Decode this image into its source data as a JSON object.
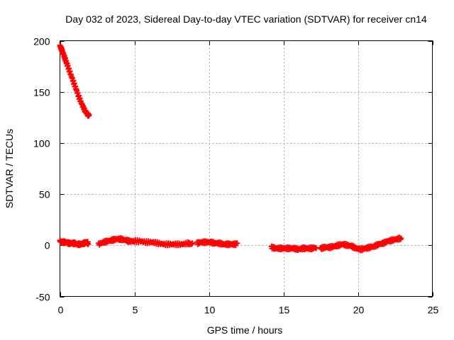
{
  "chart_data": {
    "type": "scatter",
    "title": "Day 032 of 2023, Sidereal Day-to-day VTEC variation (SDTVAR) for receiver cn14",
    "xlabel": "GPS time / hours",
    "ylabel": "SDTVAR / TECUs",
    "xlim": [
      0,
      25
    ],
    "ylim": [
      -50,
      200
    ],
    "x_ticks": [
      0,
      5,
      10,
      15,
      20,
      25
    ],
    "y_ticks": [
      -50,
      0,
      50,
      100,
      150,
      200
    ],
    "grid": true,
    "marker": "+",
    "series": [
      {
        "name": "SDTVAR",
        "color": "#ff0000",
        "segments": [
          {
            "x": [
              0.0,
              0.1,
              0.2,
              0.35,
              0.5,
              0.7,
              0.9,
              1.1,
              1.3,
              1.5,
              1.7,
              1.85,
              1.95
            ],
            "y": [
              195,
              192,
              188,
              182,
              176,
              168,
              160,
              152,
              144,
              137,
              131,
              128,
              127
            ]
          },
          {
            "x": [
              0.0,
              0.2,
              0.4,
              0.6,
              0.8,
              1.0,
              1.2,
              1.4,
              1.6,
              1.8,
              1.9
            ],
            "y": [
              4,
              3,
              3,
              2,
              2,
              2,
              1,
              1,
              2,
              3,
              2
            ]
          },
          {
            "x": [
              2.6,
              2.9,
              3.2,
              3.5,
              3.8,
              4.1,
              4.4,
              4.7,
              5.0,
              5.4,
              5.8,
              6.2,
              6.6,
              7.0,
              7.4,
              7.8,
              8.2,
              8.6,
              8.9
            ],
            "y": [
              1,
              3,
              4,
              5,
              6,
              6,
              5,
              4,
              4,
              4,
              3,
              3,
              2,
              1,
              1,
              1,
              1,
              2,
              1
            ]
          },
          {
            "x": [
              9.2,
              9.5,
              9.8,
              10.1,
              10.4,
              10.7,
              11.0,
              11.3,
              11.6,
              11.9
            ],
            "y": [
              2,
              3,
              3,
              3,
              2,
              2,
              1,
              1,
              1,
              1
            ]
          },
          {
            "x": [
              14.2,
              14.5,
              14.8,
              15.1,
              15.4,
              15.7,
              16.0,
              16.3,
              16.6,
              16.9,
              17.2
            ],
            "y": [
              -2,
              -3,
              -3,
              -3,
              -3,
              -3,
              -4,
              -3,
              -3,
              -3,
              -2
            ]
          },
          {
            "x": [
              17.5,
              17.8,
              18.1,
              18.4,
              18.7,
              19.0,
              19.3,
              19.6,
              19.9,
              20.2,
              20.5,
              20.8,
              21.1,
              21.4,
              21.7,
              22.0,
              22.3,
              22.6,
              22.9
            ],
            "y": [
              -3,
              -2,
              -2,
              -1,
              0,
              1,
              0,
              -1,
              -3,
              -4,
              -3,
              -2,
              -1,
              1,
              2,
              4,
              5,
              6,
              7
            ]
          }
        ]
      }
    ]
  }
}
